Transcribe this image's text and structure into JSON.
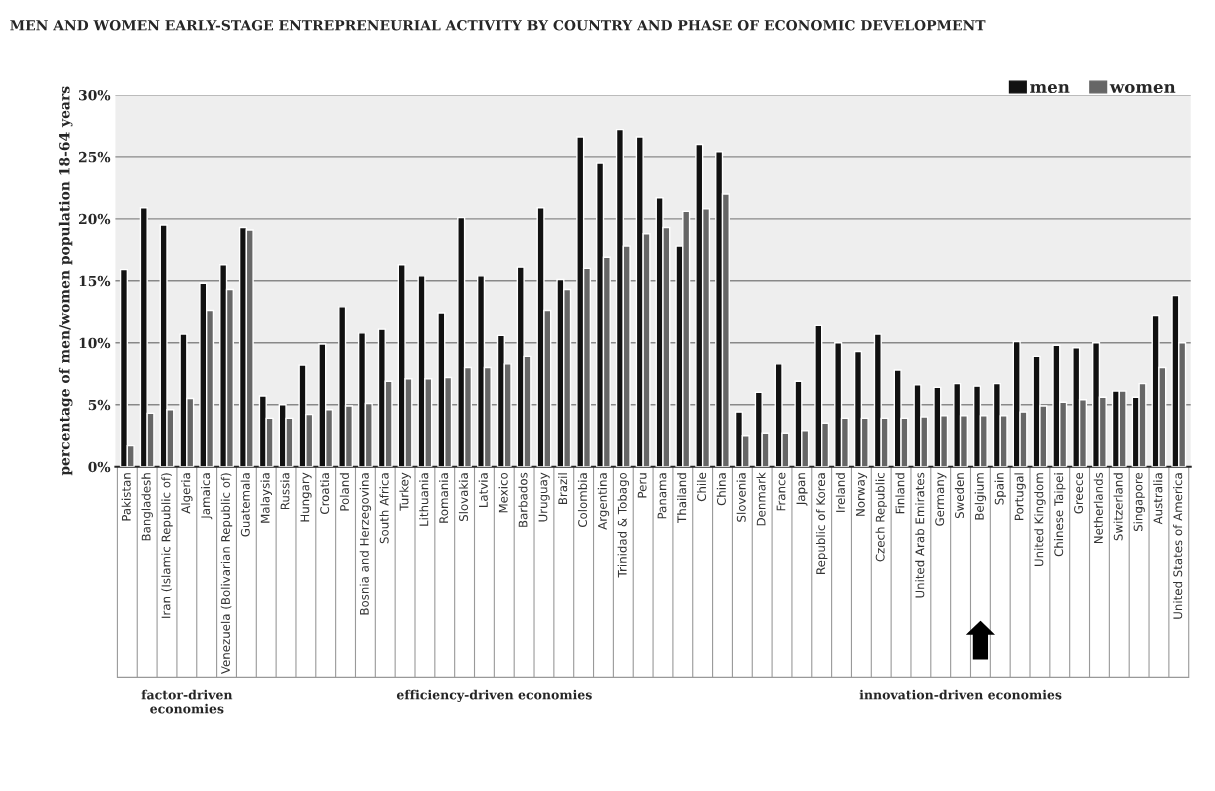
{
  "chart_data": {
    "type": "bar",
    "title": "MEN AND WOMEN EARLY-STAGE ENTREPRENEURIAL ACTIVITY BY COUNTRY AND PHASE OF ECONOMIC DEVELOPMENT",
    "ylabel": "percentage of men/women population 18-64 years",
    "categories": [
      "Pakistan",
      "Bangladesh",
      "Iran (Islamic Republic of)",
      "Algeria",
      "Jamaica",
      "Venezuela (Bolivarian Republic of)",
      "Guatemala",
      "Malaysia",
      "Russia",
      "Hungary",
      "Croatia",
      "Poland",
      "Bosnia and Herzegovina",
      "South Africa",
      "Turkey",
      "Lithuania",
      "Romania",
      "Slovakia",
      "Latvia",
      "Mexico",
      "Barbados",
      "Uruguay",
      "Brazil",
      "Colombia",
      "Argentina",
      "Trinidad & Tobago",
      "Peru",
      "Panama",
      "Thailand",
      "Chile",
      "China",
      "Slovenia",
      "Denmark",
      "France",
      "Japan",
      "Republic of Korea",
      "Ireland",
      "Norway",
      "Czech Republic",
      "Finland",
      "United Arab Emirates",
      "Germany",
      "Sweden",
      "Belgium",
      "Spain",
      "Portugal",
      "United Kingdom",
      "Chinese Taipei",
      "Greece",
      "Netherlands",
      "Switzerland",
      "Singapore",
      "Australia",
      "United States of America"
    ],
    "series": [
      {
        "name": "men",
        "color": "#111111",
        "values": [
          15.9,
          20.9,
          19.5,
          10.7,
          14.8,
          16.3,
          19.3,
          5.7,
          5.0,
          8.2,
          9.9,
          12.9,
          10.8,
          11.1,
          16.3,
          15.4,
          12.4,
          20.1,
          15.4,
          10.6,
          16.1,
          20.9,
          15.1,
          26.6,
          24.5,
          27.2,
          26.6,
          21.7,
          17.8,
          26.0,
          25.4,
          4.4,
          6.0,
          8.3,
          6.9,
          11.4,
          10.0,
          9.3,
          10.7,
          7.8,
          6.6,
          6.4,
          6.7,
          6.5,
          6.7,
          10.1,
          8.9,
          9.8,
          9.6,
          10.0,
          6.1,
          5.6,
          12.2,
          13.8
        ]
      },
      {
        "name": "women",
        "color": "#666666",
        "values": [
          1.7,
          4.3,
          4.6,
          5.5,
          12.6,
          14.3,
          19.1,
          3.9,
          3.9,
          4.2,
          4.6,
          4.9,
          5.1,
          6.9,
          7.1,
          7.1,
          7.2,
          8.0,
          8.0,
          8.3,
          8.9,
          12.6,
          14.3,
          16.0,
          16.9,
          17.8,
          18.8,
          19.3,
          20.6,
          20.8,
          22.0,
          2.5,
          2.7,
          2.7,
          2.9,
          3.5,
          3.9,
          3.9,
          3.9,
          3.9,
          4.0,
          4.1,
          4.1,
          4.1,
          4.1,
          4.4,
          4.9,
          5.2,
          5.4,
          5.6,
          6.1,
          6.7,
          8.0,
          10.0
        ]
      }
    ],
    "ylim": [
      0,
      30
    ],
    "yticks": [
      {
        "value": 0,
        "label": "0%"
      },
      {
        "value": 5,
        "label": "5%"
      },
      {
        "value": 10,
        "label": "10%"
      },
      {
        "value": 15,
        "label": "15%"
      },
      {
        "value": 20,
        "label": "20%"
      },
      {
        "value": 25,
        "label": "25%"
      },
      {
        "value": 30,
        "label": "30%"
      }
    ],
    "grid": "y",
    "legend": "top right",
    "annotations": [
      "factor-driven\neconomies",
      "efficiency-driven economies",
      "innovation-driven economies"
    ]
  }
}
